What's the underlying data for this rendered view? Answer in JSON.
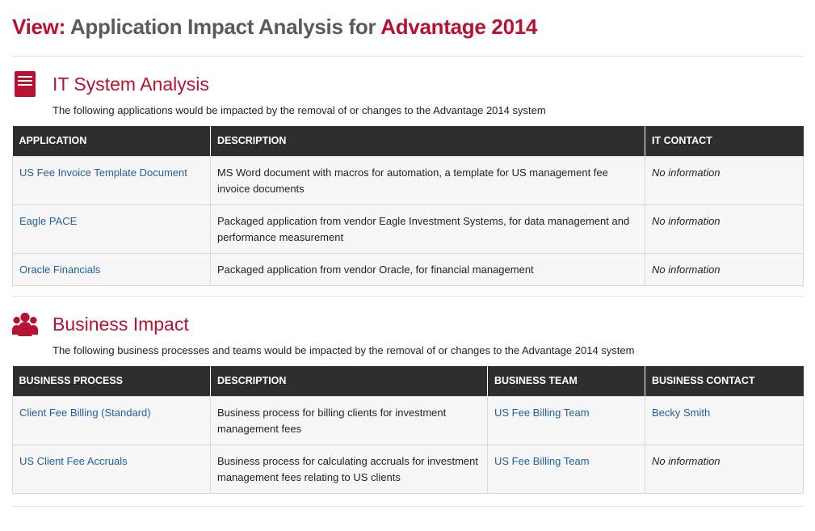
{
  "header": {
    "view_label": "View:",
    "title_text": "Application Impact Analysis for",
    "system_name": "Advantage 2014"
  },
  "colors": {
    "accent": "#b81232",
    "link": "#1f5f9e",
    "header_bg": "#2e2e2e",
    "row_bg": "#f7f7f7"
  },
  "it_section": {
    "icon": "server-icon",
    "title": "IT System Analysis",
    "description": "The following applications would be impacted by the removal of or changes to the  Advantage 2014  system",
    "columns": [
      "APPLICATION",
      "DESCRIPTION",
      "IT CONTACT"
    ],
    "rows": [
      {
        "application": "US Fee Invoice Template Document",
        "description": "MS Word document with macros for automation, a template for US management fee invoice documents",
        "contact": "No information"
      },
      {
        "application": "Eagle PACE",
        "description": "Packaged application from vendor Eagle Investment Systems, for data management and performance measurement",
        "contact": "No information"
      },
      {
        "application": "Oracle Financials",
        "description": "Packaged application from vendor Oracle, for financial management",
        "contact": "No information"
      }
    ]
  },
  "business_section": {
    "icon": "users-icon",
    "title": "Business Impact",
    "description": "The following business processes and teams would be impacted by the removal of or changes to the  Advantage 2014  system",
    "columns": [
      "BUSINESS PROCESS",
      "DESCRIPTION",
      "BUSINESS TEAM",
      "BUSINESS CONTACT"
    ],
    "rows": [
      {
        "process": "Client Fee Billing (Standard)",
        "description": "Business process for billing clients for investment management fees",
        "team": "US Fee Billing Team",
        "contact": "Becky Smith"
      },
      {
        "process": "US Client Fee Accruals",
        "description": "Business process for calculating accruals for investment management fees relating to US clients",
        "team": "US Fee Billing Team",
        "contact": "No information"
      }
    ]
  }
}
